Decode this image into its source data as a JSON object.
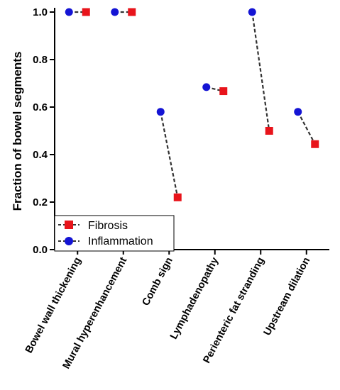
{
  "chart_data": {
    "type": "scatter",
    "ylabel": "Fraction of bowel segments",
    "ylim": [
      0,
      1
    ],
    "yticks": [
      "0.0",
      "0.2",
      "0.4",
      "0.6",
      "0.8",
      "1.0"
    ],
    "categories": [
      "Bowel wall thickening",
      "Mural hyperenhancement",
      "Comb sign",
      "Lymphadenopathy",
      "Perienteric fat stranding",
      "Upstream dilation"
    ],
    "series": [
      {
        "name": "Fibrosis",
        "marker": "square",
        "color": "#e8141b",
        "values": [
          1.0,
          1.0,
          0.22,
          0.667,
          0.5,
          0.444
        ]
      },
      {
        "name": "Inflammation",
        "marker": "circle",
        "color": "#1414d4",
        "values": [
          1.0,
          1.0,
          0.58,
          0.684,
          1.0,
          0.58
        ]
      }
    ],
    "connector": {
      "style": "dashed",
      "color": "#333333"
    },
    "legend": {
      "position": "bottom-left",
      "entries": [
        "Fibrosis",
        "Inflammation"
      ]
    }
  }
}
